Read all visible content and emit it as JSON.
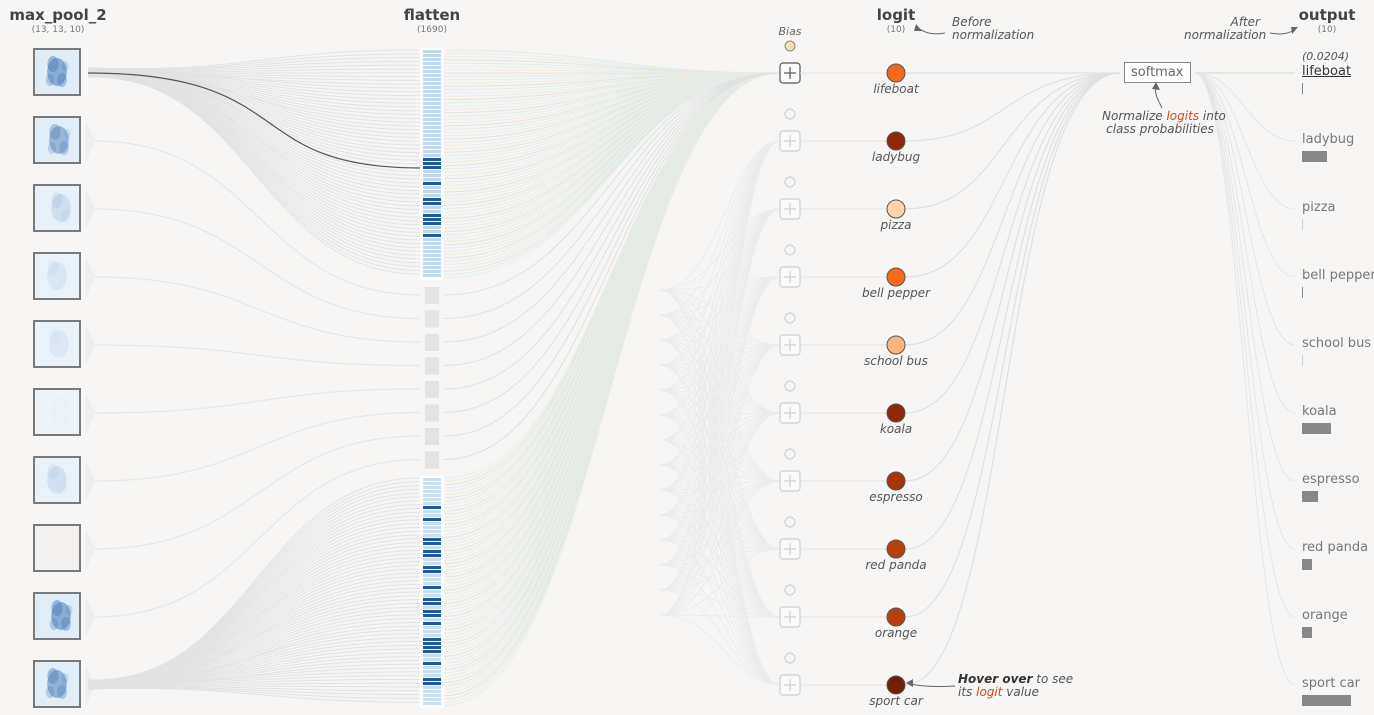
{
  "columns": {
    "maxpool": {
      "title": "max_pool_2",
      "shape": "(13, 13, 10)"
    },
    "flatten": {
      "title": "flatten",
      "shape": "(1690)"
    },
    "logit": {
      "title": "logit",
      "shape": "(10)"
    },
    "output": {
      "title": "output",
      "shape": "(10)"
    }
  },
  "bias_label": "Bias",
  "softmax_label": "softmax",
  "annotations": {
    "before": [
      "Before",
      "normalization"
    ],
    "after": [
      "After",
      "normalization"
    ],
    "normalize_pre": "Normalize ",
    "normalize_hl": "logits",
    "normalize_post": " into",
    "normalize_line2": "class probabilities",
    "hover_bold": "Hover over",
    "hover_rest": " to see",
    "hover_line2_pre": "its ",
    "hover_line2_hl": "logit",
    "hover_line2_post": " value"
  },
  "selected_value": "(0.0204)",
  "classes": [
    {
      "name": "lifeboat",
      "logit_color": "#f26b1d",
      "prob": 0.0204
    },
    {
      "name": "ladybug",
      "logit_color": "#8a2a0a",
      "prob": 0.48
    },
    {
      "name": "pizza",
      "logit_color": "#fdd3b0",
      "prob": 0.001
    },
    {
      "name": "bell pepper",
      "logit_color": "#f26b1d",
      "prob": 0.02
    },
    {
      "name": "school bus",
      "logit_color": "#fdb47a",
      "prob": 0.003
    },
    {
      "name": "koala",
      "logit_color": "#8a2a0a",
      "prob": 0.55
    },
    {
      "name": "espresso",
      "logit_color": "#a63507",
      "prob": 0.3
    },
    {
      "name": "red panda",
      "logit_color": "#b8400a",
      "prob": 0.2
    },
    {
      "name": "orange",
      "logit_color": "#b8400a",
      "prob": 0.2
    },
    {
      "name": "sport car",
      "logit_color": "#6e1f0a",
      "prob": 0.95
    }
  ],
  "feature_map_intensity": [
    0.85,
    0.75,
    0.35,
    0.25,
    0.2,
    0.05,
    0.3,
    0.0,
    0.85,
    0.8
  ],
  "colors": {
    "accent": "#d9480f",
    "edge": "#dddddd",
    "flatten_blue": "#2b6cb0"
  }
}
